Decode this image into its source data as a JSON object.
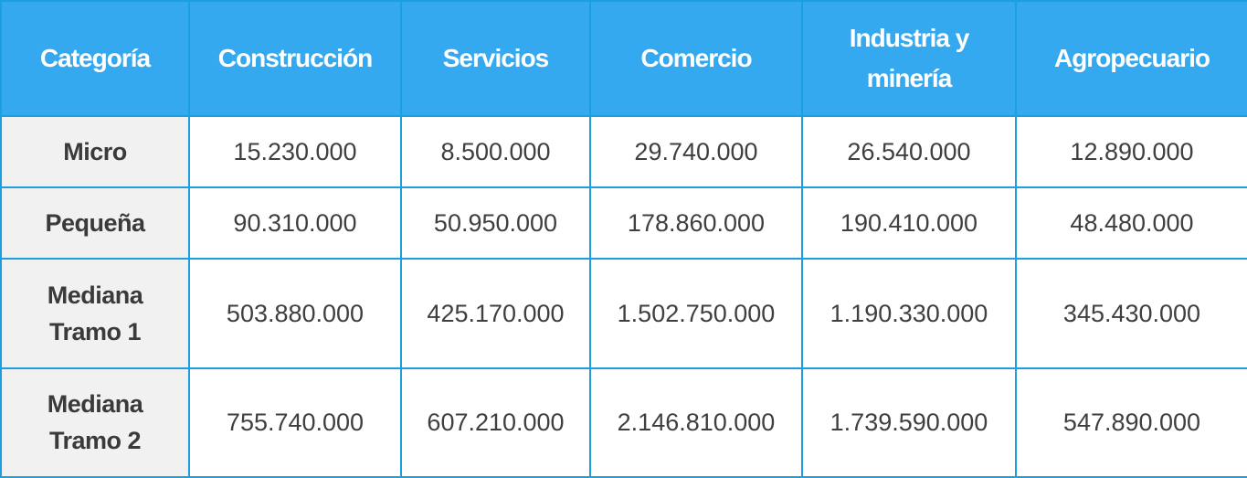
{
  "table": {
    "headers": [
      [
        "Categoría"
      ],
      [
        "Construcción"
      ],
      [
        "Servicios"
      ],
      [
        "Comercio"
      ],
      [
        "Industria y",
        "minería"
      ],
      [
        "Agropecuario"
      ]
    ],
    "rows": [
      {
        "category": [
          "Micro"
        ],
        "values": [
          "15.230.000",
          "8.500.000",
          "29.740.000",
          "26.540.000",
          "12.890.000"
        ]
      },
      {
        "category": [
          "Pequeña"
        ],
        "values": [
          "90.310.000",
          "50.950.000",
          "178.860.000",
          "190.410.000",
          "48.480.000"
        ]
      },
      {
        "category": [
          "Mediana",
          "Tramo 1"
        ],
        "values": [
          "503.880.000",
          "425.170.000",
          "1.502.750.000",
          "1.190.330.000",
          "345.430.000"
        ]
      },
      {
        "category": [
          "Mediana",
          "Tramo 2"
        ],
        "values": [
          "755.740.000",
          "607.210.000",
          "2.146.810.000",
          "1.739.590.000",
          "547.890.000"
        ]
      }
    ]
  }
}
